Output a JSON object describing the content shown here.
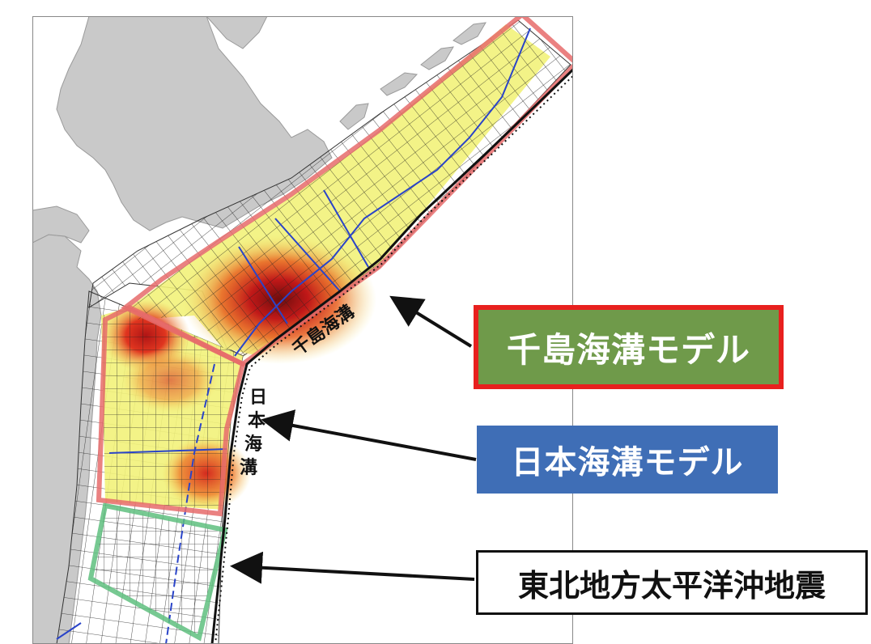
{
  "map": {
    "trench_labels": {
      "kuril_trench": "千島海溝",
      "japan_trench_chars": [
        "日",
        "本",
        "海",
        "溝"
      ]
    },
    "model_regions": [
      {
        "name": "kuril_model",
        "outline_color": "#e66b6b"
      },
      {
        "name": "japan_model",
        "outline_color": "#e66b6b"
      },
      {
        "name": "tohoku_earthquake_area",
        "outline_color": "#5fbf7f"
      }
    ],
    "colors": {
      "land": "#c9c9c9",
      "sea": "#ffffff",
      "fault_fill_low": "#f2f27a",
      "fault_fill_high": "#d61f1f",
      "fault_fill_peak": "#7a1010",
      "segment_lines": "#2a44c8"
    }
  },
  "legend": {
    "kuril_model": {
      "label": "千島海溝モデル",
      "bg": "#6f9a4a",
      "border": "#e8201e"
    },
    "japan_model": {
      "label": "日本海溝モデル",
      "bg": "#3f6eb6"
    },
    "tohoku_eq": {
      "label": "東北地方太平洋沖地震",
      "bg": "#ffffff",
      "border": "#111111"
    }
  }
}
